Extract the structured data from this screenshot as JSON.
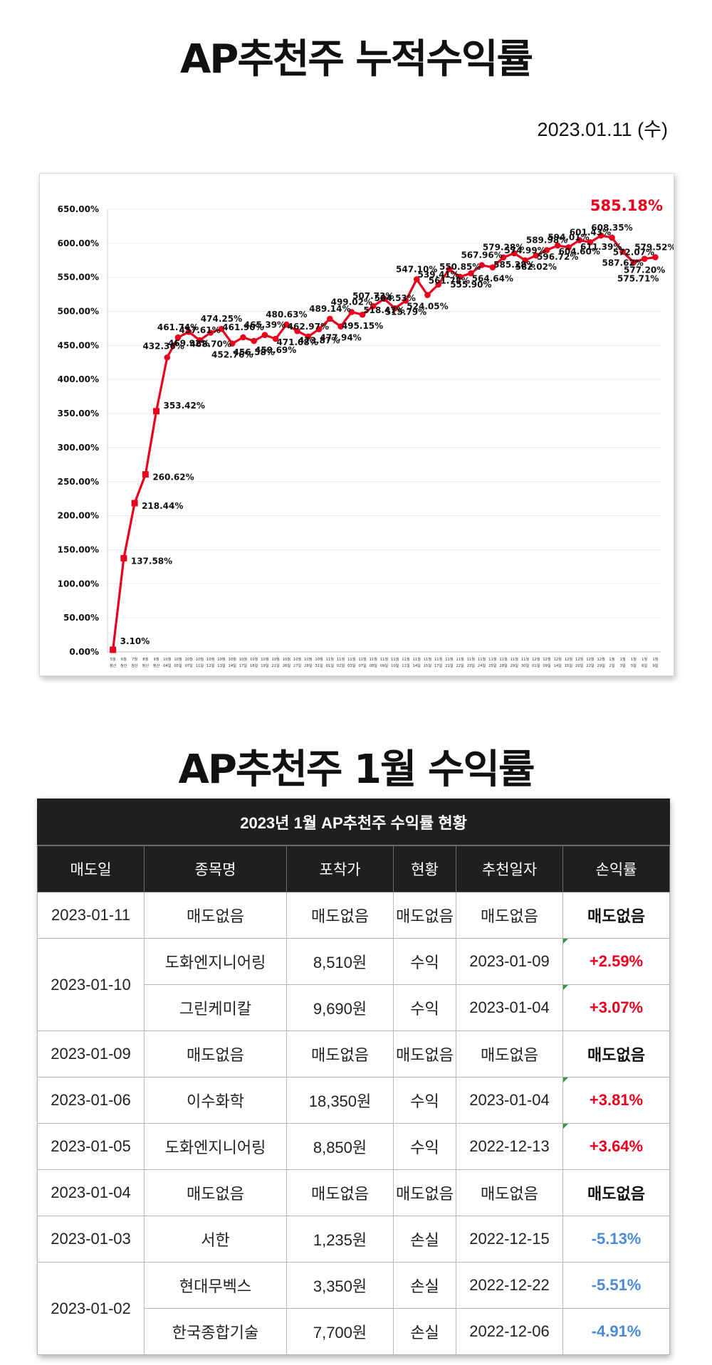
{
  "header": {
    "chart_title": "AP추천주 누적수익률",
    "date": "2023.01.11 (수)",
    "table_title": "AP추천주 1월 수익률"
  },
  "chart_data": {
    "type": "line",
    "color": "#e8001c",
    "ylim": [
      0,
      650
    ],
    "yticks": [
      "0.00%",
      "50.00%",
      "100.00%",
      "150.00%",
      "200.00%",
      "250.00%",
      "300.00%",
      "350.00%",
      "400.00%",
      "450.00%",
      "500.00%",
      "550.00%",
      "600.00%",
      "650.00%"
    ],
    "grid": true,
    "highlight_label": "585.18%",
    "x": [
      "5월 정산",
      "6월 정산",
      "7월 정산",
      "8월 정산",
      "9월 정산",
      "10월 04일",
      "10월 05일",
      "10월 07일",
      "10월 11일",
      "10월 12일",
      "10월 13일",
      "10월 14일",
      "10월 17일",
      "10월 18일",
      "10월 19일",
      "10월 21일",
      "10월 26일",
      "10월 27일",
      "10월 28일",
      "10월 31일",
      "11월 01일",
      "11월 02일",
      "11월 03일",
      "11월 07일",
      "11월 08일",
      "11월 09일",
      "11월 10일",
      "11월 11일",
      "11월 14일",
      "11월 15일",
      "11월 17일",
      "11월 21일",
      "11월 22일",
      "11월 23일",
      "11월 24일",
      "11월 25일",
      "11월 28일",
      "11월 29일",
      "11월 30일",
      "12월 01일",
      "12월 09일",
      "12월 14일",
      "12월 15일",
      "12월 20일",
      "12월 22일",
      "12월 29일",
      "1월 2일",
      "1월 3일",
      "1월 5일",
      "1월 6일",
      "1월 9일"
    ],
    "series": [
      {
        "values": [
          3.1,
          137.58,
          218.44,
          260.62,
          353.42,
          432.36,
          461.74,
          469.92,
          457.61,
          468.7,
          474.25,
          452.76,
          461.9,
          456.58,
          465.39,
          459.69,
          480.63,
          471.08,
          462.97,
          473.87,
          489.14,
          477.94,
          499.02,
          495.15,
          507.73,
          518.47,
          504.53,
          515.79,
          547.1,
          524.05,
          539.41,
          561.78,
          550.85,
          555.9,
          567.96,
          564.64,
          579.28,
          585.28,
          574.99,
          582.02,
          589.98,
          596.72,
          594.01,
          604.6,
          601.43,
          611.39,
          608.35,
          587.62,
          572.07,
          577.2,
          579.52
        ],
        "labels": [
          "3.10%",
          "137.58%",
          "218.44%",
          "260.62%",
          "353.42%",
          "432.36%",
          "461.74%",
          "469.92%",
          "457.61%",
          "468.70%",
          "474.25%",
          "452.76%",
          "461.90%",
          "456.58%",
          "465.39%",
          "459.69%",
          "480.63%",
          "471.08%",
          "462.97%",
          "473.87%",
          "489.14%",
          "477.94%",
          "499.02%",
          "495.15%",
          "507.73%",
          "518.47%",
          "504.53%",
          "515.79%",
          "547.10%",
          "524.05%",
          "539.41%",
          "561.78%",
          "550.85%",
          "555.90%",
          "567.96%",
          "564.64%",
          "579.28%",
          "585.28%",
          "574.99%",
          "582.02%",
          "589.98%",
          "596.72%",
          "594.01%",
          "604.60%",
          "601.43%",
          "611.39%",
          "608.35%",
          "587.62%",
          "572.07%",
          "577.20%",
          "579.52%"
        ]
      }
    ],
    "extra_labels": [
      "575.71%"
    ]
  },
  "table": {
    "caption": "2023년 1월 AP추천주 수익률 현황",
    "columns": [
      "매도일",
      "종목명",
      "포착가",
      "현황",
      "추천일자",
      "손익률"
    ],
    "rows": [
      {
        "sell_date": "2023-01-11",
        "rowspan": 1,
        "stock": "매도없음",
        "price": "매도없음",
        "status": "매도없음",
        "rec_date": "매도없음",
        "rate": "매도없음",
        "kind": "none",
        "flag": false
      },
      {
        "sell_date": "2023-01-10",
        "rowspan": 2,
        "stock": "도화엔지니어링",
        "price": "8,510원",
        "status": "수익",
        "rec_date": "2023-01-09",
        "rate": "+2.59%",
        "kind": "pos",
        "flag": true
      },
      {
        "sell_date": null,
        "rowspan": 0,
        "stock": "그린케미칼",
        "price": "9,690원",
        "status": "수익",
        "rec_date": "2023-01-04",
        "rate": "+3.07%",
        "kind": "pos",
        "flag": true
      },
      {
        "sell_date": "2023-01-09",
        "rowspan": 1,
        "stock": "매도없음",
        "price": "매도없음",
        "status": "매도없음",
        "rec_date": "매도없음",
        "rate": "매도없음",
        "kind": "none",
        "flag": false
      },
      {
        "sell_date": "2023-01-06",
        "rowspan": 1,
        "stock": "이수화학",
        "price": "18,350원",
        "status": "수익",
        "rec_date": "2023-01-04",
        "rate": "+3.81%",
        "kind": "pos",
        "flag": true
      },
      {
        "sell_date": "2023-01-05",
        "rowspan": 1,
        "stock": "도화엔지니어링",
        "price": "8,850원",
        "status": "수익",
        "rec_date": "2022-12-13",
        "rate": "+3.64%",
        "kind": "pos",
        "flag": true
      },
      {
        "sell_date": "2023-01-04",
        "rowspan": 1,
        "stock": "매도없음",
        "price": "매도없음",
        "status": "매도없음",
        "rec_date": "매도없음",
        "rate": "매도없음",
        "kind": "none",
        "flag": false
      },
      {
        "sell_date": "2023-01-03",
        "rowspan": 1,
        "stock": "서한",
        "price": "1,235원",
        "status": "손실",
        "rec_date": "2022-12-15",
        "rate": "-5.13%",
        "kind": "neg",
        "flag": false
      },
      {
        "sell_date": "2023-01-02",
        "rowspan": 2,
        "stock": "현대무벡스",
        "price": "3,350원",
        "status": "손실",
        "rec_date": "2022-12-22",
        "rate": "-5.51%",
        "kind": "neg",
        "flag": false
      },
      {
        "sell_date": null,
        "rowspan": 0,
        "stock": "한국종합기술",
        "price": "7,700원",
        "status": "손실",
        "rec_date": "2022-12-06",
        "rate": "-4.91%",
        "kind": "neg",
        "flag": false
      }
    ]
  }
}
